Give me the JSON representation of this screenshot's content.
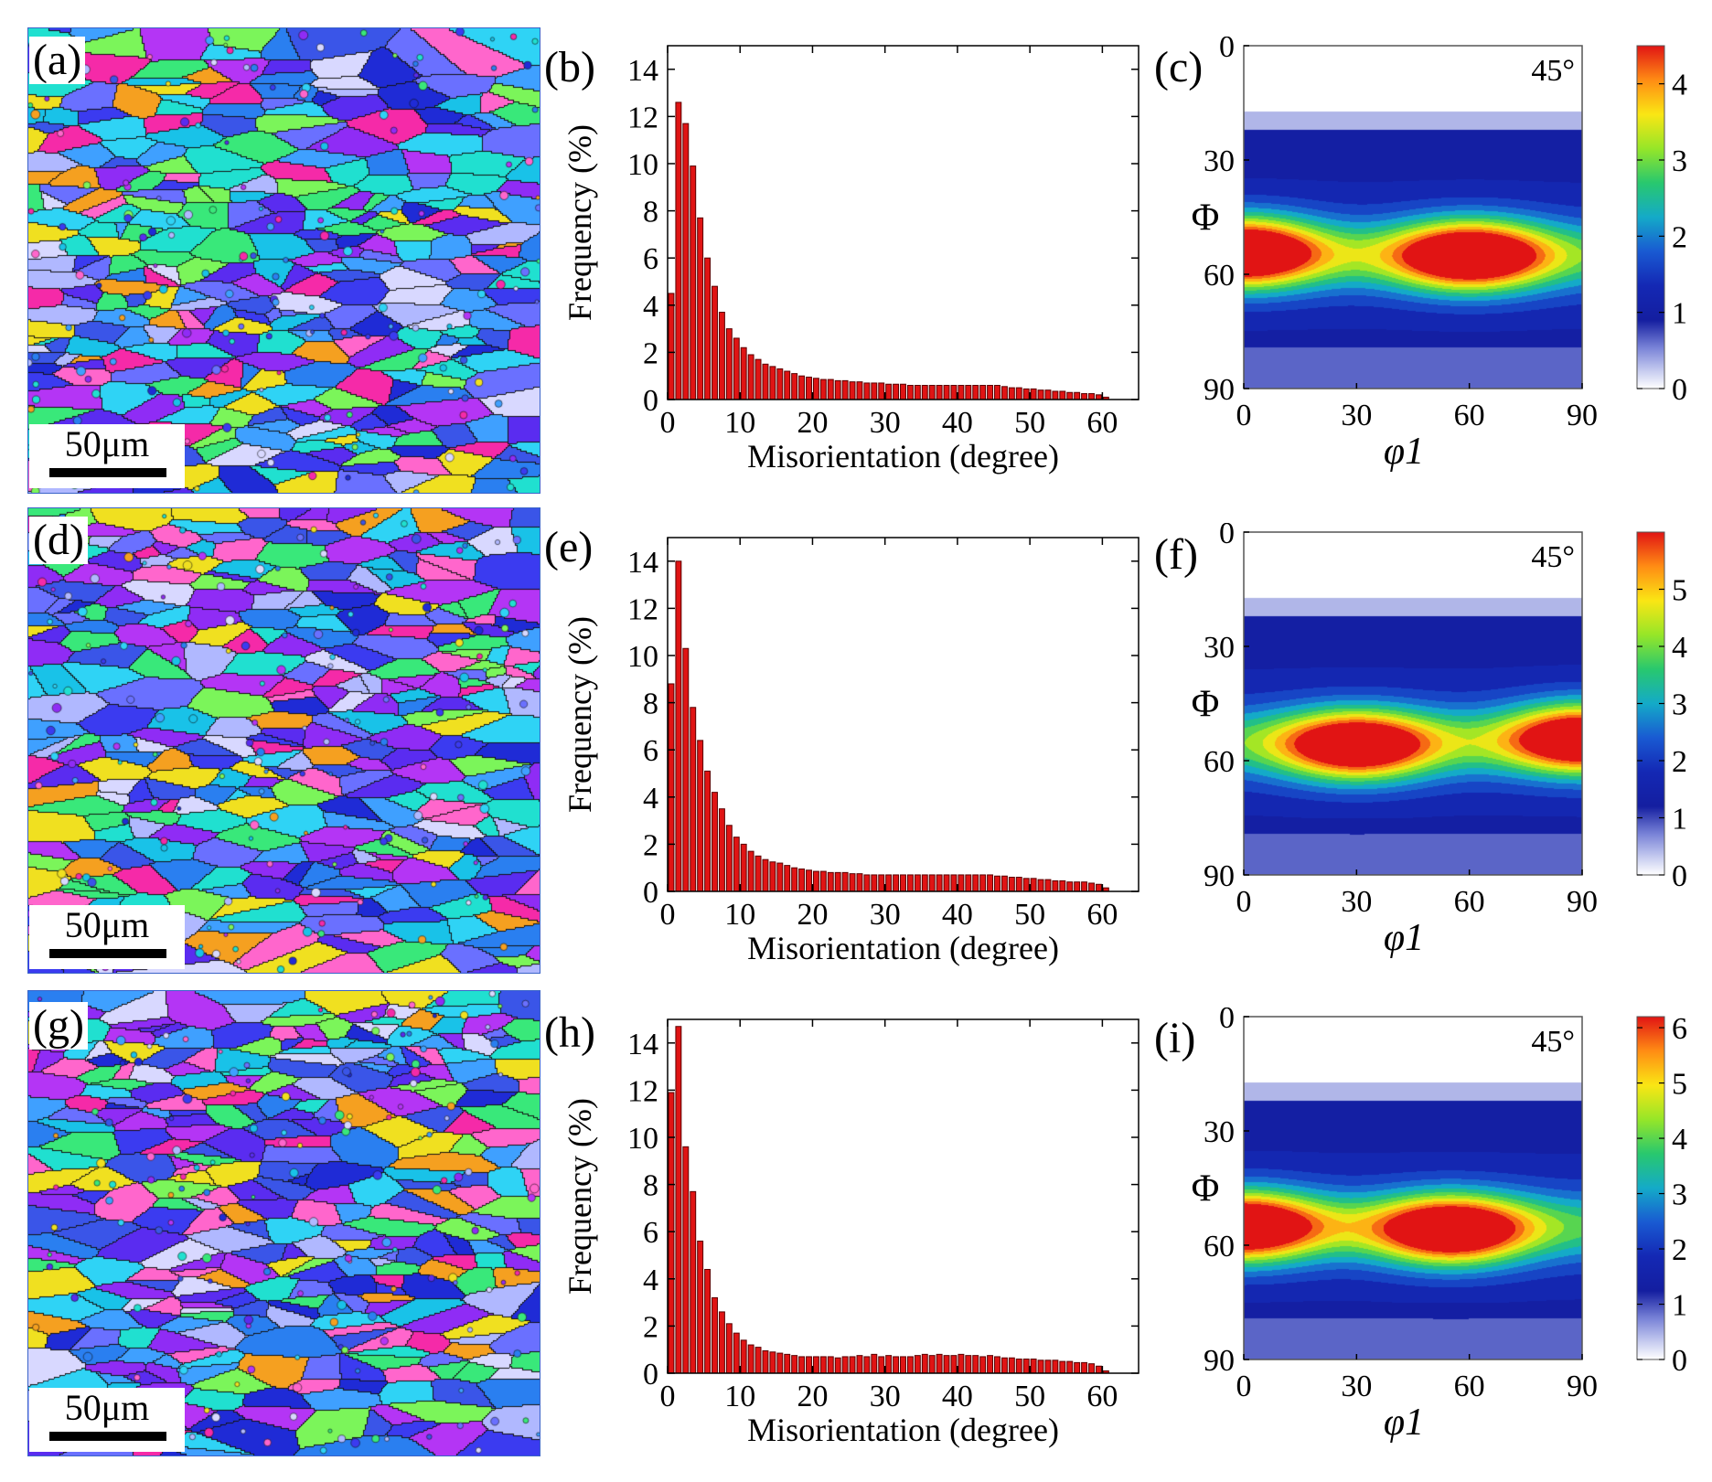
{
  "figure": {
    "rows": [
      {
        "ebsd": {
          "label": "(a)",
          "scale_label": "50μm",
          "seed": 11
        },
        "hist": {
          "label": "(b)",
          "chart_index": 0
        },
        "odf": {
          "label": "(c)",
          "chart_index": 0
        }
      },
      {
        "ebsd": {
          "label": "(d)",
          "scale_label": "50μm",
          "seed": 27
        },
        "hist": {
          "label": "(e)",
          "chart_index": 1
        },
        "odf": {
          "label": "(f)",
          "chart_index": 1
        }
      },
      {
        "ebsd": {
          "label": "(g)",
          "scale_label": "50μm",
          "seed": 53
        },
        "hist": {
          "label": "(h)",
          "chart_index": 2
        },
        "odf": {
          "label": "(i)",
          "chart_index": 2
        }
      }
    ]
  },
  "colors": {
    "bar_fill": "#e01414",
    "bar_edge": "#5a0000",
    "ipf": [
      "#1f2bd6",
      "#3b3bf0",
      "#5a2cf0",
      "#8f2cf5",
      "#b435f5",
      "#2fd3f5",
      "#19c2e8",
      "#3fa0ff",
      "#2a7ff0",
      "#39e87a",
      "#7bf55a",
      "#f0e020",
      "#f5a020",
      "#f52aa8",
      "#ff66cc",
      "#d8d8ff",
      "#b0b8ff",
      "#3a55e8",
      "#6a70ff",
      "#20e0d0"
    ]
  },
  "chart_data": [
    {
      "type": "bar",
      "title": "",
      "xlabel": "Misorientation (degree)",
      "ylabel": "Frequency (%)",
      "xlim": [
        0,
        65
      ],
      "ylim": [
        0,
        15
      ],
      "xticks": [
        "0",
        "10",
        "20",
        "30",
        "40",
        "50",
        "60"
      ],
      "yticks": [
        "0",
        "2",
        "4",
        "6",
        "8",
        "10",
        "12",
        "14"
      ],
      "bin_width": 1,
      "x": [
        0.5,
        1.5,
        2.5,
        3.5,
        4.5,
        5.5,
        6.5,
        7.5,
        8.5,
        9.5,
        10.5,
        11.5,
        12.5,
        13.5,
        14.5,
        15.5,
        16.5,
        17.5,
        18.5,
        19.5,
        20.5,
        21.5,
        22.5,
        23.5,
        24.5,
        25.5,
        26.5,
        27.5,
        28.5,
        29.5,
        30.5,
        31.5,
        32.5,
        33.5,
        34.5,
        35.5,
        36.5,
        37.5,
        38.5,
        39.5,
        40.5,
        41.5,
        42.5,
        43.5,
        44.5,
        45.5,
        46.5,
        47.5,
        48.5,
        49.5,
        50.5,
        51.5,
        52.5,
        53.5,
        54.5,
        55.5,
        56.5,
        57.5,
        58.5,
        59.5,
        60.5
      ],
      "values": [
        4.5,
        12.6,
        11.7,
        9.9,
        7.7,
        6.0,
        4.8,
        3.7,
        3.0,
        2.6,
        2.2,
        1.9,
        1.7,
        1.5,
        1.4,
        1.3,
        1.2,
        1.1,
        1.0,
        0.95,
        0.9,
        0.85,
        0.85,
        0.8,
        0.8,
        0.75,
        0.75,
        0.7,
        0.7,
        0.7,
        0.65,
        0.65,
        0.65,
        0.6,
        0.6,
        0.6,
        0.6,
        0.6,
        0.6,
        0.6,
        0.6,
        0.6,
        0.6,
        0.6,
        0.6,
        0.6,
        0.55,
        0.5,
        0.5,
        0.45,
        0.45,
        0.4,
        0.4,
        0.35,
        0.35,
        0.3,
        0.3,
        0.25,
        0.25,
        0.2,
        0.1
      ]
    },
    {
      "type": "bar",
      "title": "",
      "xlabel": "Misorientation (degree)",
      "ylabel": "Frequency (%)",
      "xlim": [
        0,
        65
      ],
      "ylim": [
        0,
        15
      ],
      "xticks": [
        "0",
        "10",
        "20",
        "30",
        "40",
        "50",
        "60"
      ],
      "yticks": [
        "0",
        "2",
        "4",
        "6",
        "8",
        "10",
        "12",
        "14"
      ],
      "bin_width": 1,
      "x": [
        0.5,
        1.5,
        2.5,
        3.5,
        4.5,
        5.5,
        6.5,
        7.5,
        8.5,
        9.5,
        10.5,
        11.5,
        12.5,
        13.5,
        14.5,
        15.5,
        16.5,
        17.5,
        18.5,
        19.5,
        20.5,
        21.5,
        22.5,
        23.5,
        24.5,
        25.5,
        26.5,
        27.5,
        28.5,
        29.5,
        30.5,
        31.5,
        32.5,
        33.5,
        34.5,
        35.5,
        36.5,
        37.5,
        38.5,
        39.5,
        40.5,
        41.5,
        42.5,
        43.5,
        44.5,
        45.5,
        46.5,
        47.5,
        48.5,
        49.5,
        50.5,
        51.5,
        52.5,
        53.5,
        54.5,
        55.5,
        56.5,
        57.5,
        58.5,
        59.5,
        60.5
      ],
      "values": [
        8.8,
        14.0,
        10.3,
        7.8,
        6.4,
        5.1,
        4.2,
        3.5,
        2.8,
        2.3,
        2.0,
        1.7,
        1.5,
        1.35,
        1.25,
        1.2,
        1.1,
        1.0,
        0.95,
        0.9,
        0.85,
        0.85,
        0.8,
        0.8,
        0.8,
        0.75,
        0.75,
        0.7,
        0.7,
        0.7,
        0.7,
        0.7,
        0.7,
        0.7,
        0.7,
        0.7,
        0.7,
        0.7,
        0.7,
        0.7,
        0.7,
        0.7,
        0.7,
        0.7,
        0.7,
        0.65,
        0.65,
        0.6,
        0.6,
        0.55,
        0.55,
        0.5,
        0.5,
        0.45,
        0.45,
        0.4,
        0.4,
        0.4,
        0.35,
        0.3,
        0.15
      ]
    },
    {
      "type": "bar",
      "title": "",
      "xlabel": "Misorientation (degree)",
      "ylabel": "Frequency (%)",
      "xlim": [
        0,
        65
      ],
      "ylim": [
        0,
        15
      ],
      "xticks": [
        "0",
        "10",
        "20",
        "30",
        "40",
        "50",
        "60"
      ],
      "yticks": [
        "0",
        "2",
        "4",
        "6",
        "8",
        "10",
        "12",
        "14"
      ],
      "bin_width": 1,
      "x": [
        0.5,
        1.5,
        2.5,
        3.5,
        4.5,
        5.5,
        6.5,
        7.5,
        8.5,
        9.5,
        10.5,
        11.5,
        12.5,
        13.5,
        14.5,
        15.5,
        16.5,
        17.5,
        18.5,
        19.5,
        20.5,
        21.5,
        22.5,
        23.5,
        24.5,
        25.5,
        26.5,
        27.5,
        28.5,
        29.5,
        30.5,
        31.5,
        32.5,
        33.5,
        34.5,
        35.5,
        36.5,
        37.5,
        38.5,
        39.5,
        40.5,
        41.5,
        42.5,
        43.5,
        44.5,
        45.5,
        46.5,
        47.5,
        48.5,
        49.5,
        50.5,
        51.5,
        52.5,
        53.5,
        54.5,
        55.5,
        56.5,
        57.5,
        58.5,
        59.5,
        60.5
      ],
      "values": [
        11.9,
        14.7,
        9.6,
        7.7,
        5.6,
        4.4,
        3.2,
        2.6,
        2.1,
        1.7,
        1.4,
        1.2,
        1.1,
        0.95,
        0.9,
        0.85,
        0.8,
        0.75,
        0.7,
        0.7,
        0.7,
        0.7,
        0.7,
        0.65,
        0.7,
        0.7,
        0.75,
        0.7,
        0.8,
        0.7,
        0.75,
        0.7,
        0.7,
        0.7,
        0.75,
        0.8,
        0.75,
        0.8,
        0.75,
        0.75,
        0.8,
        0.75,
        0.75,
        0.7,
        0.75,
        0.7,
        0.65,
        0.65,
        0.6,
        0.6,
        0.6,
        0.55,
        0.55,
        0.55,
        0.5,
        0.5,
        0.45,
        0.45,
        0.4,
        0.3,
        0.1
      ]
    },
    {
      "type": "heatmap",
      "title": "45°",
      "xlabel": "φ1",
      "ylabel": "Φ",
      "xlim": [
        0,
        90
      ],
      "ylim": [
        0,
        90
      ],
      "xticks": [
        "0",
        "30",
        "60",
        "90"
      ],
      "yticks": [
        "0",
        "30",
        "60",
        "90"
      ],
      "colorbar_range": [
        0,
        4.5
      ],
      "colorbar_ticks": [
        "0",
        "1",
        "2",
        "3",
        "4"
      ],
      "peaks": [
        {
          "phi1": 0,
          "Phi": 54,
          "value": 4.5
        },
        {
          "phi1": 60,
          "Phi": 55,
          "value": 4.5
        }
      ]
    },
    {
      "type": "heatmap",
      "title": "45°",
      "xlabel": "φ1",
      "ylabel": "Φ",
      "xlim": [
        0,
        90
      ],
      "ylim": [
        0,
        90
      ],
      "xticks": [
        "0",
        "30",
        "60",
        "90"
      ],
      "yticks": [
        "0",
        "30",
        "60",
        "90"
      ],
      "colorbar_range": [
        0,
        6
      ],
      "colorbar_ticks": [
        "0",
        "1",
        "2",
        "3",
        "4",
        "5"
      ],
      "peaks": [
        {
          "phi1": 30,
          "Phi": 56,
          "value": 5.6
        },
        {
          "phi1": 90,
          "Phi": 54,
          "value": 5.6
        }
      ]
    },
    {
      "type": "heatmap",
      "title": "45°",
      "xlabel": "φ1",
      "ylabel": "Φ",
      "xlim": [
        0,
        90
      ],
      "ylim": [
        0,
        90
      ],
      "xticks": [
        "0",
        "30",
        "60",
        "90"
      ],
      "yticks": [
        "0",
        "30",
        "60",
        "90"
      ],
      "colorbar_range": [
        0,
        6.2
      ],
      "colorbar_ticks": [
        "0",
        "1",
        "2",
        "3",
        "4",
        "5",
        "6"
      ],
      "peaks": [
        {
          "phi1": 0,
          "Phi": 55,
          "value": 6.0
        },
        {
          "phi1": 55,
          "Phi": 56,
          "value": 6.0
        }
      ]
    }
  ]
}
